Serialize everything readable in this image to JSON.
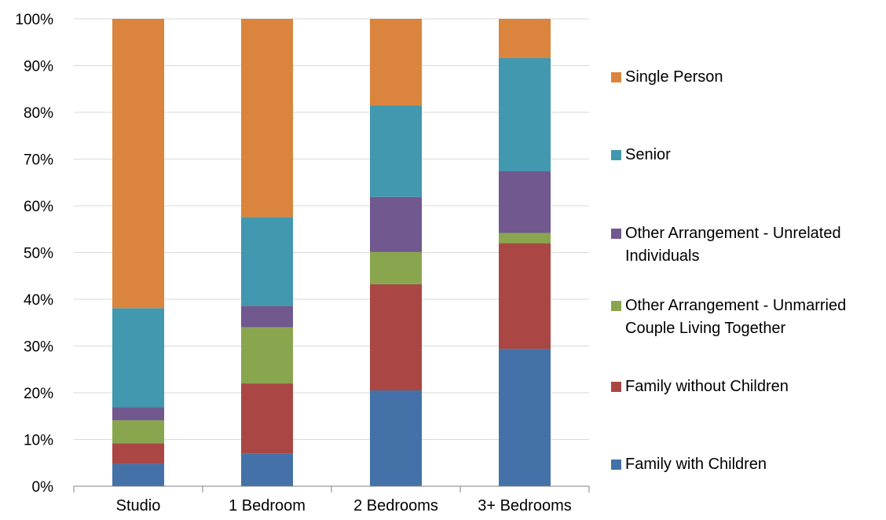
{
  "chart_data": {
    "type": "bar",
    "stacked": true,
    "percent_axis": true,
    "categories": [
      "Studio",
      "1 Bedroom",
      "2 Bedrooms",
      "3+ Bedrooms"
    ],
    "y_ticks": [
      "0%",
      "10%",
      "20%",
      "30%",
      "40%",
      "50%",
      "60%",
      "70%",
      "80%",
      "90%",
      "100%"
    ],
    "ylim": [
      0,
      100
    ],
    "grid": true,
    "legend_position": "right",
    "series": [
      {
        "name": "Family with Children",
        "color": "#4472a8",
        "values": [
          4.8,
          7.0,
          20.5,
          29.4
        ]
      },
      {
        "name": "Family without Children",
        "color": "#aa4744",
        "values": [
          4.4,
          15.0,
          22.7,
          22.6
        ]
      },
      {
        "name": "Other Arrangement - Unmarried Couple Living Together",
        "color": "#89a64e",
        "values": [
          4.9,
          12.0,
          6.9,
          2.2
        ]
      },
      {
        "name": "Other Arrangement - Unrelated Individuals",
        "color": "#71588f",
        "values": [
          2.8,
          4.6,
          11.8,
          13.2
        ]
      },
      {
        "name": "Senior",
        "color": "#4198af",
        "values": [
          21.2,
          19.0,
          19.6,
          24.2
        ]
      },
      {
        "name": "Single Person",
        "color": "#db843d",
        "values": [
          61.9,
          42.4,
          18.5,
          8.4
        ]
      }
    ]
  }
}
